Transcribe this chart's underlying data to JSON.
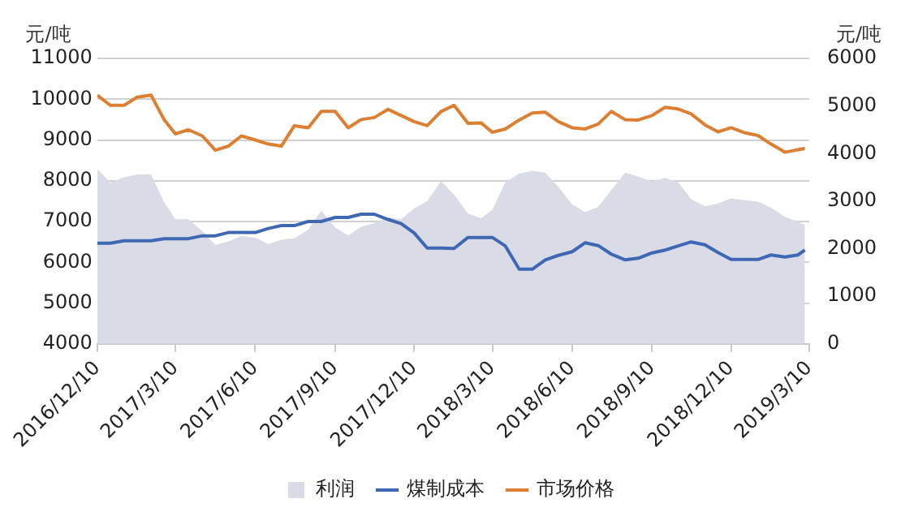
{
  "chart_data": {
    "type": "line",
    "ylabel": "元/吨",
    "y2label": "元/吨",
    "x": [
      "2016-12-10",
      "2016-12-25",
      "2017-01-10",
      "2017-01-25",
      "2017-02-10",
      "2017-02-25",
      "2017-03-10",
      "2017-03-25",
      "2017-04-10",
      "2017-04-25",
      "2017-05-10",
      "2017-05-25",
      "2017-06-10",
      "2017-06-25",
      "2017-07-10",
      "2017-07-25",
      "2017-08-10",
      "2017-08-25",
      "2017-09-10",
      "2017-09-25",
      "2017-10-10",
      "2017-10-25",
      "2017-11-10",
      "2017-11-25",
      "2017-12-10",
      "2017-12-25",
      "2018-01-10",
      "2018-01-25",
      "2018-02-10",
      "2018-02-25",
      "2018-03-10",
      "2018-03-25",
      "2018-04-10",
      "2018-04-25",
      "2018-05-10",
      "2018-05-25",
      "2018-06-10",
      "2018-06-25",
      "2018-07-10",
      "2018-07-25",
      "2018-08-10",
      "2018-08-25",
      "2018-09-10",
      "2018-09-25",
      "2018-10-10",
      "2018-10-25",
      "2018-11-10",
      "2018-11-25",
      "2018-12-10",
      "2018-12-25",
      "2019-01-10",
      "2019-01-25",
      "2019-02-10",
      "2019-02-25",
      "2019-03-05"
    ],
    "series": [
      {
        "name": "利润",
        "type": "area",
        "axis": "y2",
        "color": "#d9dce6",
        "values": [
          3680,
          3390,
          3500,
          3560,
          3560,
          2980,
          2620,
          2620,
          2370,
          2080,
          2150,
          2270,
          2230,
          2100,
          2190,
          2220,
          2400,
          2800,
          2450,
          2280,
          2460,
          2540,
          2660,
          2620,
          2850,
          3000,
          3420,
          3140,
          2740,
          2640,
          2820,
          3400,
          3580,
          3640,
          3600,
          3300,
          2930,
          2770,
          2880,
          3230,
          3600,
          3520,
          3410,
          3490,
          3400,
          3040,
          2890,
          2950,
          3060,
          3020,
          2990,
          2860,
          2670,
          2570,
          2500
        ]
      },
      {
        "name": "煤制成本",
        "type": "line",
        "color": "#3f67b3",
        "values": [
          6470,
          6470,
          6530,
          6530,
          6530,
          6580,
          6580,
          6580,
          6650,
          6650,
          6730,
          6730,
          6730,
          6830,
          6900,
          6900,
          7000,
          7000,
          7100,
          7100,
          7180,
          7180,
          7050,
          6950,
          6720,
          6350,
          6350,
          6340,
          6610,
          6610,
          6610,
          6400,
          5830,
          5830,
          6060,
          6170,
          6260,
          6480,
          6410,
          6200,
          6060,
          6100,
          6230,
          6300,
          6400,
          6500,
          6430,
          6240,
          6070,
          6070,
          6070,
          6180,
          6130,
          6180,
          6300
        ]
      },
      {
        "name": "市场价格",
        "type": "line",
        "color": "#dd7f33",
        "values": [
          10100,
          9850,
          9850,
          10050,
          10100,
          9500,
          9150,
          9250,
          9100,
          8750,
          8850,
          9100,
          9000,
          8900,
          8850,
          9350,
          9300,
          9700,
          9700,
          9300,
          9500,
          9550,
          9750,
          9600,
          9450,
          9350,
          9700,
          9850,
          9410,
          9420,
          9190,
          9270,
          9490,
          9660,
          9680,
          9450,
          9300,
          9270,
          9390,
          9700,
          9500,
          9490,
          9600,
          9800,
          9760,
          9640,
          9370,
          9200,
          9300,
          9180,
          9110,
          8900,
          8700,
          8760,
          8790
        ]
      }
    ],
    "xlim": [
      "2016-12-10",
      "2019-03-10"
    ],
    "xticks": [
      {
        "value": "2016-12-10",
        "label": "2016/12/10"
      },
      {
        "value": "2017-03-10",
        "label": "2017/3/10"
      },
      {
        "value": "2017-06-10",
        "label": "2017/6/10"
      },
      {
        "value": "2017-09-10",
        "label": "2017/9/10"
      },
      {
        "value": "2017-12-10",
        "label": "2017/12/10"
      },
      {
        "value": "2018-03-10",
        "label": "2018/3/10"
      },
      {
        "value": "2018-06-10",
        "label": "2018/6/10"
      },
      {
        "value": "2018-09-10",
        "label": "2018/9/10"
      },
      {
        "value": "2018-12-10",
        "label": "2018/12/10"
      },
      {
        "value": "2019-03-10",
        "label": "2019/3/10"
      }
    ],
    "ylim": [
      4000,
      11000
    ],
    "yticks": [
      4000,
      5000,
      6000,
      7000,
      8000,
      9000,
      10000,
      11000
    ],
    "y2lim": [
      0,
      6000
    ],
    "y2ticks": [
      0,
      1000,
      2000,
      3000,
      4000,
      5000,
      6000
    ],
    "grid": "y",
    "legend": "bottom",
    "marker": "none",
    "line_style": "solid"
  }
}
